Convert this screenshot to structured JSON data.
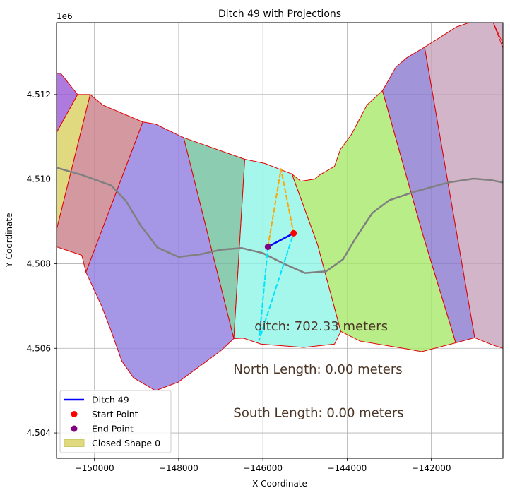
{
  "chart_data": {
    "type": "line",
    "title": "Ditch 49 with Projections",
    "xlabel": "X Coordinate",
    "ylabel": "Y Coordinate",
    "y_offset_label": "1e6",
    "xlim": [
      -150900,
      -140300
    ],
    "ylim": [
      4503400,
      4513700
    ],
    "grid": true,
    "x_ticks": [
      -150000,
      -148000,
      -146000,
      -144000,
      -142000
    ],
    "x_tick_labels": [
      "−150000",
      "−148000",
      "−146000",
      "−144000",
      "−142000"
    ],
    "y_ticks": [
      4504000,
      4506000,
      4508000,
      4510000,
      4512000
    ],
    "y_tick_labels": [
      "4.504",
      "4.506",
      "4.508",
      "4.510",
      "4.512"
    ],
    "polygons": [
      {
        "color": "#9b59d6",
        "points": [
          [
            -150900,
            4512500
          ],
          [
            -150800,
            4512500
          ],
          [
            -150400,
            4512000
          ],
          [
            -150900,
            4511100
          ]
        ]
      },
      {
        "color": "#d9cf60",
        "points": [
          [
            -150900,
            4511100
          ],
          [
            -150400,
            4512000
          ],
          [
            -150100,
            4512000
          ],
          [
            -150900,
            4508800
          ]
        ]
      },
      {
        "color": "#c98088",
        "points": [
          [
            -150900,
            4508800
          ],
          [
            -150100,
            4512000
          ],
          [
            -149800,
            4511750
          ],
          [
            -148850,
            4511350
          ],
          [
            -150200,
            4507800
          ],
          [
            -150300,
            4508200
          ],
          [
            -150600,
            4508300
          ],
          [
            -150900,
            4508400
          ]
        ]
      },
      {
        "color": "#8f7de0",
        "points": [
          [
            -148850,
            4511350
          ],
          [
            -148550,
            4511300
          ],
          [
            -147880,
            4510980
          ],
          [
            -146690,
            4506230
          ],
          [
            -146990,
            4505950
          ],
          [
            -148010,
            4505200
          ],
          [
            -148550,
            4505000
          ],
          [
            -149070,
            4505300
          ],
          [
            -149350,
            4505700
          ],
          [
            -149600,
            4506400
          ],
          [
            -149830,
            4507000
          ],
          [
            -150200,
            4507800
          ]
        ]
      },
      {
        "color": "#6fbf9c",
        "points": [
          [
            -147880,
            4510980
          ],
          [
            -146430,
            4510470
          ],
          [
            -146690,
            4506230
          ]
        ]
      },
      {
        "color": "#90f5e6",
        "points": [
          [
            -146430,
            4510470
          ],
          [
            -145950,
            4510370
          ],
          [
            -145310,
            4510120
          ],
          [
            -144700,
            4508450
          ],
          [
            -144150,
            4506400
          ],
          [
            -144300,
            4506100
          ],
          [
            -145030,
            4506020
          ],
          [
            -146050,
            4506100
          ],
          [
            -146460,
            4506240
          ],
          [
            -146690,
            4506230
          ]
        ]
      },
      {
        "color": "#a7e96a",
        "points": [
          [
            -145310,
            4510120
          ],
          [
            -145100,
            4509950
          ],
          [
            -144770,
            4510000
          ],
          [
            -144650,
            4510100
          ],
          [
            -144300,
            4510300
          ],
          [
            -144160,
            4510700
          ],
          [
            -143900,
            4511050
          ],
          [
            -143530,
            4511750
          ],
          [
            -143160,
            4512090
          ],
          [
            -142220,
            4508750
          ],
          [
            -141420,
            4506130
          ],
          [
            -141920,
            4506000
          ],
          [
            -142230,
            4505920
          ],
          [
            -142610,
            4505990
          ],
          [
            -143690,
            4506170
          ],
          [
            -144150,
            4506400
          ],
          [
            -144700,
            4508450
          ]
        ]
      },
      {
        "color": "#8b79cf",
        "points": [
          [
            -143160,
            4512090
          ],
          [
            -142840,
            4512650
          ],
          [
            -142580,
            4512870
          ],
          [
            -142160,
            4513120
          ],
          [
            -140970,
            4506250
          ],
          [
            -141420,
            4506130
          ],
          [
            -142220,
            4508750
          ]
        ]
      },
      {
        "color": "#c7a2bc",
        "points": [
          [
            -142160,
            4513120
          ],
          [
            -141400,
            4513600
          ],
          [
            -141100,
            4513700
          ],
          [
            -140530,
            4513700
          ],
          [
            -140300,
            4513100
          ],
          [
            -140300,
            4506000
          ],
          [
            -140550,
            4506080
          ],
          [
            -140970,
            4506250
          ]
        ]
      },
      {
        "color": "#c7a2bc",
        "points": [
          [
            -140530,
            4513700
          ],
          [
            -140300,
            4513700
          ],
          [
            -140300,
            4513200
          ]
        ]
      }
    ],
    "series": [
      {
        "type": "line",
        "color": "#808080",
        "points": [
          [
            -150900,
            4510270
          ],
          [
            -150300,
            4510100
          ],
          [
            -149600,
            4509850
          ],
          [
            -149250,
            4509480
          ],
          [
            -148900,
            4508900
          ],
          [
            -148500,
            4508380
          ],
          [
            -148000,
            4508160
          ],
          [
            -147500,
            4508220
          ],
          [
            -147000,
            4508330
          ],
          [
            -146500,
            4508370
          ],
          [
            -146000,
            4508250
          ],
          [
            -145500,
            4508000
          ],
          [
            -145000,
            4507780
          ],
          [
            -144500,
            4507820
          ],
          [
            -144100,
            4508100
          ],
          [
            -143800,
            4508600
          ],
          [
            -143400,
            4509200
          ],
          [
            -143000,
            4509500
          ],
          [
            -142400,
            4509700
          ],
          [
            -141600,
            4509920
          ],
          [
            -141000,
            4510010
          ],
          [
            -140600,
            4509980
          ],
          [
            -140300,
            4509920
          ]
        ]
      },
      {
        "name": "Ditch 49",
        "type": "line",
        "color": "#0000ff",
        "points": [
          [
            -145270,
            4508720
          ],
          [
            -145880,
            4508400
          ]
        ]
      },
      {
        "name": "projection-north",
        "type": "dashed",
        "color": "#ffa500",
        "points": [
          [
            -145880,
            4508400
          ],
          [
            -145570,
            4510240
          ],
          [
            -145270,
            4508720
          ]
        ]
      },
      {
        "name": "projection-south",
        "type": "dashed",
        "color": "#00e5ff",
        "points": [
          [
            -145880,
            4508400
          ],
          [
            -146090,
            4506190
          ],
          [
            -145270,
            4508720
          ]
        ]
      }
    ],
    "points": [
      {
        "name": "Start Point",
        "color": "#ff0000",
        "x": -145270,
        "y": 4508720
      },
      {
        "name": "End Point",
        "color": "#800080",
        "x": -145880,
        "y": 4508400
      }
    ],
    "annotations": [
      {
        "text": "ditch: 702.33 meters",
        "x": -146200,
        "y": 4506420
      },
      {
        "text": "North Length: 0.00 meters",
        "x": -146700,
        "y": 4505400
      },
      {
        "text": "South Length: 0.00 meters",
        "x": -146700,
        "y": 4504380
      }
    ],
    "legend": {
      "position": "lower-left",
      "entries": [
        {
          "label": "Ditch 49",
          "kind": "line",
          "color": "#0000ff"
        },
        {
          "label": "Start Point",
          "kind": "dot",
          "color": "#ff0000"
        },
        {
          "label": "End Point",
          "kind": "dot",
          "color": "#800080"
        },
        {
          "label": "Closed Shape 0",
          "kind": "patch",
          "color": "#d9cf60"
        }
      ]
    }
  }
}
